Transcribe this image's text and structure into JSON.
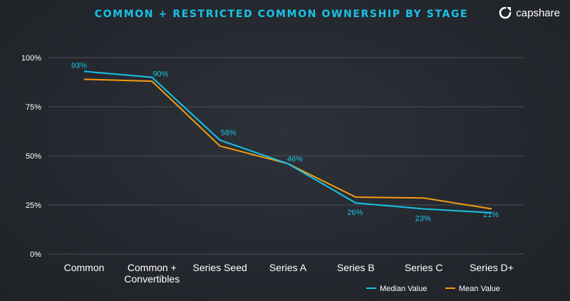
{
  "header": {
    "title": "COMMON + RESTRICTED COMMON OWNERSHIP BY STAGE",
    "logo_text": "capshare"
  },
  "colors": {
    "median": "#19c3e6",
    "mean": "#f39c12",
    "grid": "#4a4e56",
    "title": "#19c3e6"
  },
  "chart_data": {
    "type": "line",
    "title": "COMMON + RESTRICTED COMMON OWNERSHIP BY STAGE",
    "categories": [
      [
        "Common"
      ],
      [
        "Common +",
        "Convertibles"
      ],
      [
        "Series Seed"
      ],
      [
        "Series A"
      ],
      [
        "Series B"
      ],
      [
        "Series C"
      ],
      [
        "Series D+"
      ]
    ],
    "ylim": [
      0,
      100
    ],
    "yticks": [
      0,
      25,
      50,
      75,
      100
    ],
    "ytick_labels": [
      "0%",
      "25%",
      "50%",
      "75%",
      "100%"
    ],
    "grid": true,
    "legend_position": "bottom-right",
    "series": [
      {
        "name": "Median Value",
        "color": "#19c3e6",
        "values": [
          93,
          90,
          58,
          46,
          26,
          23,
          21
        ],
        "labels": [
          "93%",
          "90%",
          "58%",
          "46%",
          "26%",
          "23%",
          "21%"
        ]
      },
      {
        "name": "Mean Value",
        "color": "#f39c12",
        "values": [
          89,
          88,
          55,
          46,
          29,
          28.5,
          23
        ]
      }
    ]
  }
}
